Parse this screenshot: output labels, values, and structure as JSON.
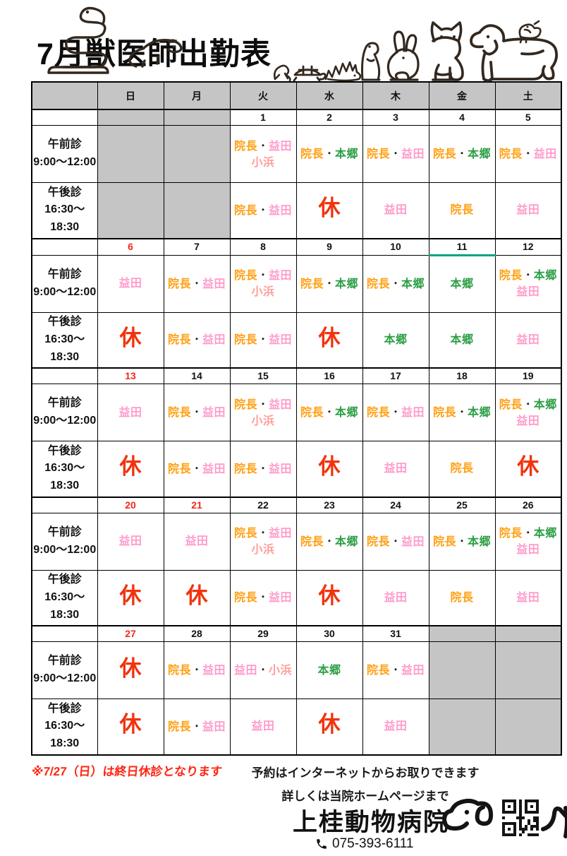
{
  "page": {
    "title": "7月獣医師出勤表"
  },
  "header_animals": [
    "snake",
    "ferret",
    "gecko",
    "turtle",
    "hedgehog",
    "meerkat",
    "rabbit",
    "cat",
    "dog",
    "bird"
  ],
  "calendar": {
    "weekday_headers": [
      "日",
      "月",
      "火",
      "水",
      "木",
      "金",
      "土"
    ],
    "session_labels": {
      "am_title": "午前診",
      "am_time": "9:00～12:00",
      "pm_title": "午後診",
      "pm_time": "16:30～18:30"
    },
    "separator": "・",
    "staff": {
      "incho": {
        "name": "院長",
        "color": "#FFA014"
      },
      "masuda": {
        "name": "益田",
        "color": "#FF9BCB"
      },
      "kohama": {
        "name": "小浜",
        "color": "#FF9D99"
      },
      "hongo": {
        "name": "本郷",
        "color": "#2C9E45"
      },
      "closed": {
        "name": "休",
        "color": "#F2330D"
      }
    },
    "weeks": [
      {
        "days": [
          {
            "off": true
          },
          {
            "off": true
          },
          {
            "date": "1",
            "am": [
              [
                "incho",
                "masuda"
              ],
              [
                "kohama"
              ]
            ],
            "pm": [
              [
                "incho",
                "masuda"
              ]
            ]
          },
          {
            "date": "2",
            "am": [
              [
                "incho",
                "hongo"
              ]
            ],
            "pm": [
              [
                "closed"
              ]
            ]
          },
          {
            "date": "3",
            "am": [
              [
                "incho",
                "masuda"
              ]
            ],
            "pm": [
              [
                "masuda"
              ]
            ]
          },
          {
            "date": "4",
            "am": [
              [
                "incho",
                "hongo"
              ]
            ],
            "pm": [
              [
                "incho"
              ]
            ]
          },
          {
            "date": "5",
            "am": [
              [
                "incho",
                "masuda"
              ]
            ],
            "pm": [
              [
                "masuda"
              ]
            ]
          }
        ]
      },
      {
        "days": [
          {
            "date": "6",
            "holiday": true,
            "am": [
              [
                "masuda"
              ]
            ],
            "pm": [
              [
                "closed"
              ]
            ]
          },
          {
            "date": "7",
            "am": [
              [
                "incho",
                "masuda"
              ]
            ],
            "pm": [
              [
                "incho",
                "masuda"
              ]
            ]
          },
          {
            "date": "8",
            "am": [
              [
                "incho",
                "masuda"
              ],
              [
                "kohama"
              ]
            ],
            "pm": [
              [
                "incho",
                "masuda"
              ]
            ]
          },
          {
            "date": "9",
            "am": [
              [
                "incho",
                "hongo"
              ]
            ],
            "pm": [
              [
                "closed"
              ]
            ]
          },
          {
            "date": "10",
            "am": [
              [
                "incho",
                "hongo"
              ]
            ],
            "pm": [
              [
                "hongo"
              ]
            ]
          },
          {
            "date": "11",
            "underline": true,
            "am": [
              [
                "hongo"
              ]
            ],
            "pm": [
              [
                "hongo"
              ]
            ]
          },
          {
            "date": "12",
            "am": [
              [
                "incho",
                "hongo"
              ],
              [
                "masuda"
              ]
            ],
            "pm": [
              [
                "masuda"
              ]
            ]
          }
        ]
      },
      {
        "days": [
          {
            "date": "13",
            "holiday": true,
            "am": [
              [
                "masuda"
              ]
            ],
            "pm": [
              [
                "closed"
              ]
            ]
          },
          {
            "date": "14",
            "am": [
              [
                "incho",
                "masuda"
              ]
            ],
            "pm": [
              [
                "incho",
                "masuda"
              ]
            ]
          },
          {
            "date": "15",
            "am": [
              [
                "incho",
                "masuda"
              ],
              [
                "kohama"
              ]
            ],
            "pm": [
              [
                "incho",
                "masuda"
              ]
            ]
          },
          {
            "date": "16",
            "am": [
              [
                "incho",
                "hongo"
              ]
            ],
            "pm": [
              [
                "closed"
              ]
            ]
          },
          {
            "date": "17",
            "am": [
              [
                "incho",
                "masuda"
              ]
            ],
            "pm": [
              [
                "masuda"
              ]
            ]
          },
          {
            "date": "18",
            "am": [
              [
                "incho",
                "hongo"
              ]
            ],
            "pm": [
              [
                "incho"
              ]
            ]
          },
          {
            "date": "19",
            "am": [
              [
                "incho",
                "hongo"
              ],
              [
                "masuda"
              ]
            ],
            "pm": [
              [
                "closed"
              ]
            ]
          }
        ]
      },
      {
        "days": [
          {
            "date": "20",
            "holiday": true,
            "am": [
              [
                "masuda"
              ]
            ],
            "pm": [
              [
                "closed"
              ]
            ]
          },
          {
            "date": "21",
            "holiday": true,
            "am": [
              [
                "masuda"
              ]
            ],
            "pm": [
              [
                "closed"
              ]
            ]
          },
          {
            "date": "22",
            "am": [
              [
                "incho",
                "masuda"
              ],
              [
                "kohama"
              ]
            ],
            "pm": [
              [
                "incho",
                "masuda"
              ]
            ]
          },
          {
            "date": "23",
            "am": [
              [
                "incho",
                "hongo"
              ]
            ],
            "pm": [
              [
                "closed"
              ]
            ]
          },
          {
            "date": "24",
            "am": [
              [
                "incho",
                "masuda"
              ]
            ],
            "pm": [
              [
                "masuda"
              ]
            ]
          },
          {
            "date": "25",
            "am": [
              [
                "incho",
                "hongo"
              ]
            ],
            "pm": [
              [
                "incho"
              ]
            ]
          },
          {
            "date": "26",
            "am": [
              [
                "incho",
                "hongo"
              ],
              [
                "masuda"
              ]
            ],
            "pm": [
              [
                "masuda"
              ]
            ]
          }
        ]
      },
      {
        "days": [
          {
            "date": "27",
            "holiday": true,
            "am": [
              [
                "closed"
              ]
            ],
            "pm": [
              [
                "closed"
              ]
            ]
          },
          {
            "date": "28",
            "am": [
              [
                "incho",
                "masuda"
              ]
            ],
            "pm": [
              [
                "incho",
                "masuda"
              ]
            ]
          },
          {
            "date": "29",
            "am": [
              [
                "masuda",
                "kohama"
              ]
            ],
            "pm": [
              [
                "masuda"
              ]
            ]
          },
          {
            "date": "30",
            "am": [
              [
                "hongo"
              ]
            ],
            "pm": [
              [
                "closed"
              ]
            ]
          },
          {
            "date": "31",
            "am": [
              [
                "incho",
                "masuda"
              ]
            ],
            "pm": [
              [
                "masuda"
              ]
            ]
          },
          {
            "off": true
          },
          {
            "off": true
          }
        ]
      }
    ]
  },
  "footer": {
    "note": "※7/27（日）は終日休診となります",
    "info_line1": "予約はインターネットからお取りできます",
    "info_line2": "詳しくは当院ホームページまで",
    "clinic_name": "上桂動物病院",
    "phone": "075-393-6111"
  },
  "icons": [
    "snake-icon",
    "ferret-icon",
    "gecko-icon",
    "turtle-icon",
    "hedgehog-icon",
    "meerkat-icon",
    "rabbit-icon",
    "cat-icon",
    "dog-icon",
    "bird-icon",
    "phone-icon",
    "dog-logo-icon",
    "qr-code",
    "cat-silhouette-icon"
  ],
  "colors": {
    "header_gray": "#C5C5C5",
    "border_black": "#000000",
    "holiday_red": "#F3281D",
    "closed_red": "#F2330D",
    "note_red": "#FF2512",
    "teal_line": "#00A57D",
    "director_orange": "#FFA014",
    "masuda_pink": "#FF9BCB",
    "kohama_salmon": "#FF9D99",
    "hongo_green": "#2C9E45"
  }
}
